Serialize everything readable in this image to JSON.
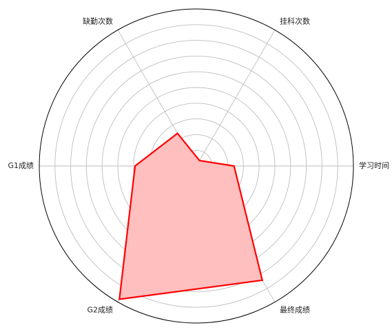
{
  "chart_data": {
    "type": "radar",
    "title": "",
    "axes": [
      "学习时间",
      "挂科次数",
      "缺勤次数",
      "G1成绩",
      "G2成绩",
      "最终成绩"
    ],
    "series": [
      {
        "values": [
          2.4,
          0.4,
          2.4,
          3.9,
          9.8,
          8.4
        ],
        "line_color": "#ff0000",
        "fill_color": "#ffbfbf"
      }
    ],
    "rlim": [
      0,
      10
    ],
    "radial_ticks": [
      1,
      2,
      3,
      4,
      5,
      6,
      7,
      8,
      9
    ],
    "radial_tick_labels_shown": false,
    "grid": true,
    "legend": "none"
  }
}
